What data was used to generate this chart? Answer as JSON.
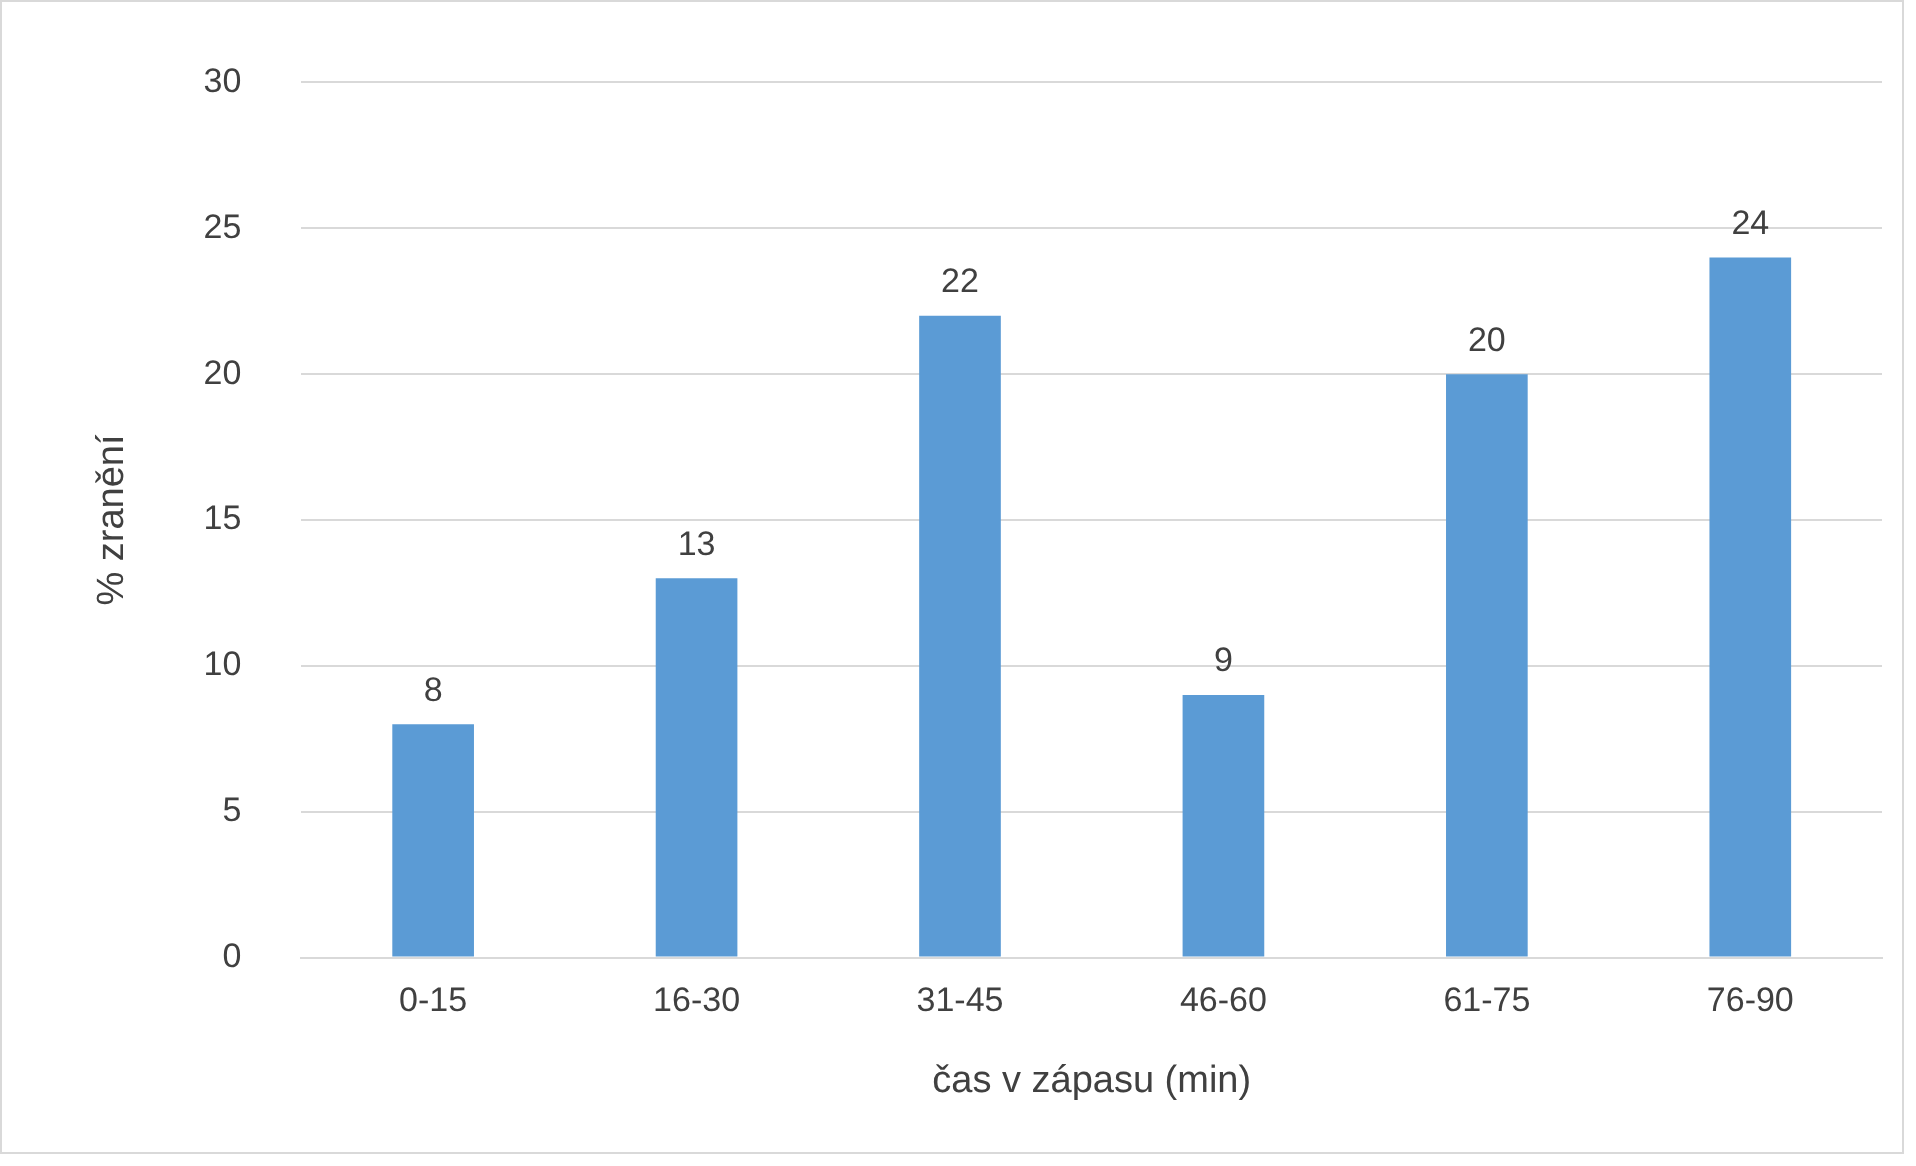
{
  "chart_data": {
    "type": "bar",
    "xlabel": "čas v zápasu (min)",
    "ylabel": "% zranění",
    "categories": [
      "0-15",
      "16-30",
      "31-45",
      "46-60",
      "61-75",
      "76-90"
    ],
    "values": [
      8,
      13,
      22,
      9,
      20,
      24
    ],
    "color": "#5b9bd5",
    "ylim": [
      0,
      30
    ],
    "yticks": [
      0,
      5,
      10,
      15,
      20,
      25,
      30
    ],
    "grid": "y",
    "data_labels": true,
    "legend": false
  }
}
